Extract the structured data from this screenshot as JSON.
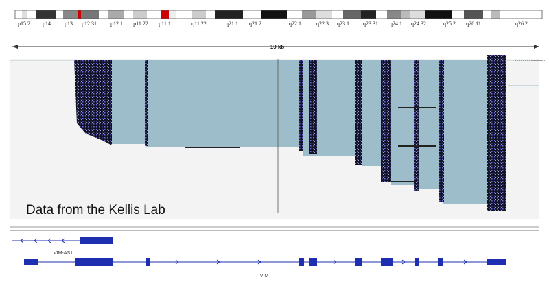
{
  "ideogram": {
    "bands": [
      "p15.2",
      "p14",
      "p13",
      "p12.31",
      "p12.1",
      "p11.22",
      "p11.1",
      "q11.22",
      "q21.1",
      "q21.2",
      "q22.1",
      "q22.3",
      "q23.1",
      "q23.31",
      "q24.1",
      "q24.32",
      "q25.2",
      "q26.11",
      "q26.2"
    ]
  },
  "ruler": {
    "label": "10 kb"
  },
  "track": {
    "overlay": "Data from the Kellis Lab"
  },
  "genes": [
    {
      "label": "VIM-AS1"
    },
    {
      "label": "VIM"
    }
  ]
}
